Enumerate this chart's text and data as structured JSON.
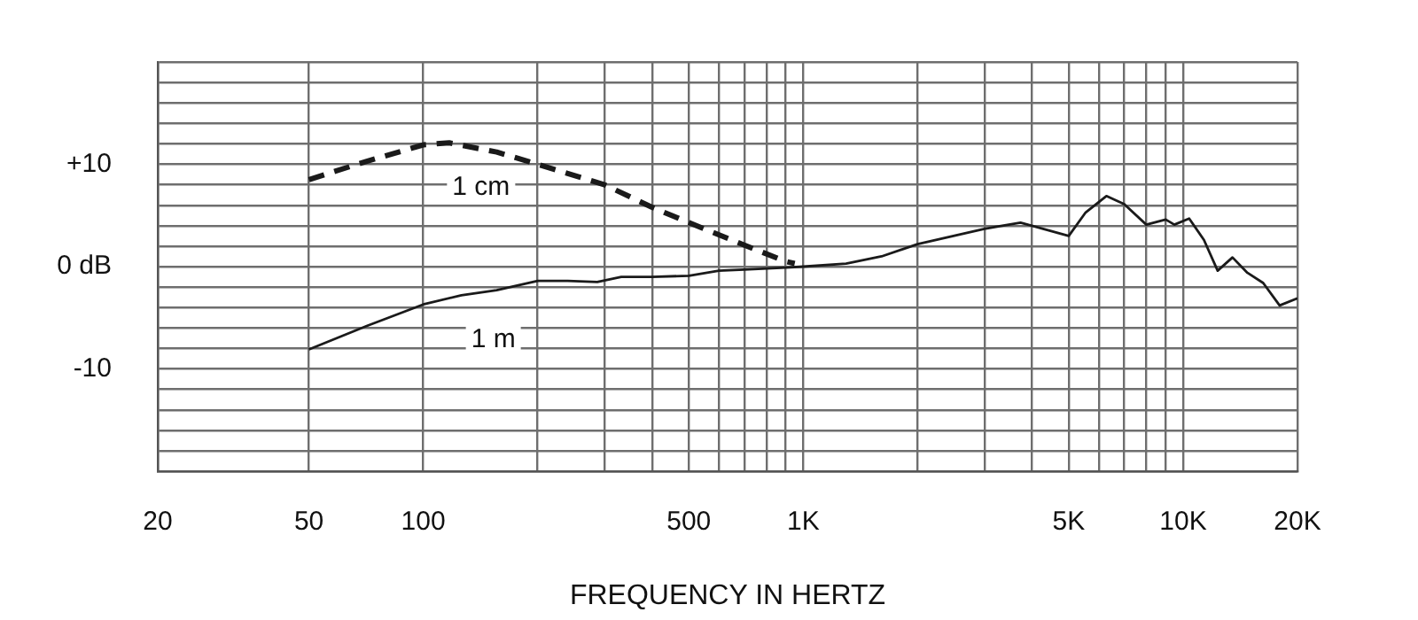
{
  "chart_data": {
    "type": "line",
    "xlabel": "FREQUENCY IN HERTZ",
    "log": "x",
    "grid": true,
    "legend": false,
    "marker": "none",
    "xlim": [
      20,
      20000
    ],
    "xticks": [
      20,
      50,
      100,
      {
        "value": 200,
        "label": null
      },
      {
        "value": 300,
        "label": null
      },
      {
        "value": 400,
        "label": null
      },
      500,
      {
        "value": 600,
        "label": null
      },
      {
        "value": 700,
        "label": null
      },
      {
        "value": 800,
        "label": null
      },
      {
        "value": 900,
        "label": null
      },
      {
        "value": 1000,
        "label": "1K"
      },
      {
        "value": 2000,
        "label": null
      },
      {
        "value": 3000,
        "label": null
      },
      {
        "value": 4000,
        "label": null
      },
      {
        "value": 5000,
        "label": "5K"
      },
      {
        "value": 6000,
        "label": null
      },
      {
        "value": 7000,
        "label": null
      },
      {
        "value": 8000,
        "label": null
      },
      {
        "value": 9000,
        "label": null
      },
      {
        "value": 10000,
        "label": "10K"
      },
      {
        "value": 20000,
        "label": "20K"
      }
    ],
    "ylim": [
      -20,
      20
    ],
    "yticks": [
      {
        "value": -20,
        "label": null
      },
      {
        "value": -18,
        "label": null
      },
      {
        "value": -16,
        "label": null
      },
      {
        "value": -14,
        "label": null
      },
      {
        "value": -12,
        "label": null
      },
      -10,
      {
        "value": -8,
        "label": null
      },
      {
        "value": -6,
        "label": null
      },
      {
        "value": -4,
        "label": null
      },
      {
        "value": -2,
        "label": null
      },
      {
        "value": 0,
        "label": "0 dB"
      },
      {
        "value": 2,
        "label": null
      },
      {
        "value": 4,
        "label": null
      },
      {
        "value": 6,
        "label": null
      },
      {
        "value": 8,
        "label": null
      },
      {
        "value": 10,
        "label": "+10"
      },
      {
        "value": 12,
        "label": null
      },
      {
        "value": 14,
        "label": null
      },
      {
        "value": 16,
        "label": null
      },
      {
        "value": 18,
        "label": null
      },
      {
        "value": 20,
        "label": null
      }
    ],
    "series": [
      {
        "name": "1 cm",
        "color": "#1a1a1a",
        "line_style": "dashed",
        "x": [
          50,
          71,
          100,
          117,
          156,
          200,
          300,
          400,
          500,
          700,
          900,
          950
        ],
        "values": [
          8.5,
          10.3,
          11.9,
          12.1,
          11.2,
          10.0,
          8.0,
          5.8,
          4.3,
          2.1,
          0.5,
          0.3
        ]
      },
      {
        "name": "1 m",
        "color": "#1a1a1a",
        "line_style": "solid",
        "x": [
          50,
          71,
          100,
          126,
          156,
          200,
          240,
          287,
          332,
          400,
          500,
          600,
          700,
          900,
          1000,
          1297,
          1608,
          2000,
          3000,
          3733,
          5000,
          5541,
          6281,
          7000,
          8000,
          9000,
          9484,
          10374,
          11350,
          12330,
          13490,
          14760,
          16250,
          17950,
          20000
        ],
        "values": [
          -8.1,
          -5.8,
          -3.7,
          -2.8,
          -2.3,
          -1.4,
          -1.4,
          -1.5,
          -1.0,
          -1.0,
          -0.9,
          -0.4,
          -0.3,
          -0.1,
          0,
          0.3,
          1.0,
          2.2,
          3.7,
          4.3,
          3.0,
          5.3,
          6.9,
          6.1,
          4.1,
          4.6,
          4.1,
          4.7,
          2.6,
          -0.4,
          0.9,
          -0.6,
          -1.6,
          -3.8,
          -3.1
        ]
      }
    ]
  }
}
